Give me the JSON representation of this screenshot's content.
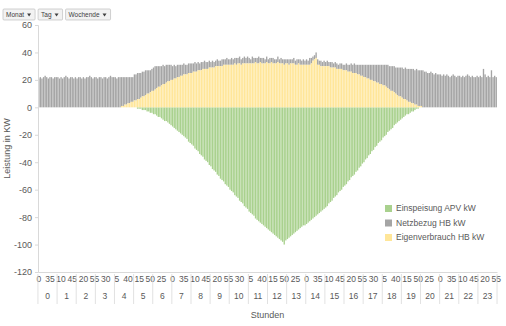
{
  "chart_data": {
    "type": "bar",
    "stacked": true,
    "grid": false,
    "legend": "lower right",
    "filters": [
      "Monat",
      "Tag",
      "Wochende"
    ],
    "y_label": "Leistung in KW",
    "x_label": "Stunden",
    "ylim": [
      -120,
      60
    ],
    "yticks": [
      -120,
      -100,
      -80,
      -60,
      -40,
      -20,
      0,
      20,
      40,
      60
    ],
    "hours": [
      "0",
      "1",
      "2",
      "3",
      "4",
      "5",
      "6",
      "7",
      "8",
      "9",
      "10",
      "11",
      "12",
      "13",
      "14",
      "15",
      "16",
      "17",
      "18",
      "19",
      "20",
      "21",
      "22",
      "23"
    ],
    "categories": [
      "0",
      null,
      null,
      null,
      null,
      null,
      null,
      "35",
      null,
      null,
      null,
      null,
      null,
      null,
      "10",
      null,
      null,
      null,
      null,
      null,
      null,
      "45",
      null,
      null,
      null,
      null,
      null,
      null,
      "20",
      null,
      null,
      null,
      null,
      null,
      null,
      "55",
      null,
      null,
      null,
      null,
      null,
      null,
      "30",
      null,
      null,
      null,
      null,
      null,
      null,
      "5",
      null,
      null,
      null,
      null,
      null,
      null,
      "40",
      null,
      null,
      null,
      null,
      null,
      null,
      "15",
      null,
      null,
      null,
      null,
      null,
      null,
      "50",
      null,
      null,
      null,
      null,
      null,
      null,
      "25",
      null,
      null,
      null,
      null,
      null,
      null,
      "0",
      null,
      null,
      null,
      null,
      null,
      null,
      "35",
      null,
      null,
      null,
      null,
      null,
      null,
      "10",
      null,
      null,
      null,
      null,
      null,
      null,
      "45",
      null,
      null,
      null,
      null,
      null,
      null,
      "20",
      null,
      null,
      null,
      null,
      null,
      null,
      "55",
      null,
      null,
      null,
      null,
      null,
      null,
      "30",
      null,
      null,
      null,
      null,
      null,
      null,
      "5",
      null,
      null,
      null,
      null,
      null,
      null,
      "40",
      null,
      null,
      null,
      null,
      null,
      null,
      "15",
      null,
      null,
      null,
      null,
      null,
      null,
      "50",
      null,
      null,
      null,
      null,
      null,
      null,
      "25",
      null,
      null,
      null,
      null,
      null,
      null,
      "0",
      null,
      null,
      null,
      null,
      null,
      null,
      "35",
      null,
      null,
      null,
      null,
      null,
      null,
      "10",
      null,
      null,
      null,
      null,
      null,
      null,
      "45",
      null,
      null,
      null,
      null,
      null,
      null,
      "20",
      null,
      null,
      null,
      null,
      null,
      null,
      "55",
      null,
      null,
      null,
      null,
      null,
      null,
      "30",
      null,
      null,
      null,
      null,
      null,
      null,
      "5",
      null,
      null,
      null,
      null,
      null,
      null,
      "40",
      null,
      null,
      null,
      null,
      null,
      null,
      "15",
      null,
      null,
      null,
      null,
      null,
      null,
      "50",
      null,
      null,
      null,
      null,
      null,
      null,
      "25",
      null,
      null,
      null,
      null,
      null,
      null,
      "0",
      null,
      null,
      null,
      null,
      null,
      null,
      "35",
      null,
      null,
      null,
      null,
      null,
      null,
      "10",
      null,
      null,
      null,
      null,
      null,
      null,
      "45",
      null,
      null,
      null,
      null,
      null,
      null,
      "20",
      null,
      null,
      null,
      null,
      null,
      null,
      "55"
    ],
    "series": [
      {
        "name": "Einspeisung APV kW",
        "color": "#a9d18e",
        "values": [
          0,
          0,
          0,
          0,
          0,
          0,
          0,
          0,
          0,
          0,
          0,
          0,
          0,
          0,
          0,
          0,
          0,
          0,
          0,
          0,
          0,
          0,
          0,
          0,
          0,
          0,
          0,
          0,
          0,
          0,
          0,
          0,
          0,
          0,
          0,
          0,
          0,
          0,
          0,
          0,
          0,
          0,
          0,
          0,
          0,
          0,
          0,
          0,
          0,
          0,
          0,
          0,
          0,
          0,
          0,
          0,
          0,
          0,
          0,
          0,
          0,
          0,
          -1,
          -1,
          -1,
          -2,
          -2,
          -2,
          -3,
          -3,
          -4,
          -4,
          -5,
          -5,
          -6,
          -7,
          -7,
          -8,
          -9,
          -10,
          -10,
          -11,
          -12,
          -13,
          -14,
          -15,
          -16,
          -17,
          -18,
          -19,
          -20,
          -21,
          -22,
          -23,
          -25,
          -26,
          -27,
          -28,
          -30,
          -31,
          -32,
          -34,
          -35,
          -36,
          -38,
          -39,
          -40,
          -42,
          -43,
          -45,
          -46,
          -47,
          -49,
          -50,
          -52,
          -53,
          -54,
          -56,
          -57,
          -58,
          -60,
          -61,
          -62,
          -64,
          -65,
          -66,
          -68,
          -69,
          -70,
          -72,
          -73,
          -74,
          -76,
          -77,
          -78,
          -79,
          -81,
          -82,
          -83,
          -84,
          -85,
          -86,
          -87,
          -88,
          -89,
          -90,
          -91,
          -92,
          -93,
          -94,
          -95,
          -96,
          -97,
          -98,
          -100,
          -97,
          -96,
          -95,
          -94,
          -93,
          -92,
          -91,
          -90,
          -89,
          -88,
          -87,
          -86,
          -86,
          -85,
          -84,
          -83,
          -82,
          -81,
          -80,
          -79,
          -78,
          -77,
          -76,
          -75,
          -74,
          -73,
          -72,
          -70,
          -69,
          -68,
          -66,
          -65,
          -64,
          -62,
          -61,
          -60,
          -58,
          -57,
          -56,
          -54,
          -53,
          -51,
          -50,
          -49,
          -47,
          -46,
          -44,
          -43,
          -41,
          -40,
          -38,
          -37,
          -35,
          -34,
          -32,
          -31,
          -29,
          -28,
          -26,
          -25,
          -24,
          -22,
          -21,
          -20,
          -18,
          -17,
          -16,
          -15,
          -13,
          -12,
          -11,
          -10,
          -9,
          -8,
          -7,
          -6,
          -5,
          -5,
          -4,
          -3,
          -3,
          -2,
          -1,
          -1,
          0,
          0,
          0,
          0,
          0,
          0,
          0,
          0,
          0,
          0,
          0,
          0,
          0,
          0,
          0,
          0,
          0,
          0,
          0,
          0,
          0,
          0,
          0,
          0,
          0,
          0,
          0,
          0,
          0,
          0,
          0,
          0,
          0,
          0,
          0,
          0,
          0,
          0,
          0,
          0,
          0,
          0,
          0,
          0,
          0,
          0,
          0,
          0,
          0
        ]
      },
      {
        "name": "Netzbezug HB kW",
        "color": "#a5a5a5",
        "values": [
          21,
          22,
          21,
          22,
          23,
          22,
          21,
          22,
          22,
          21,
          22,
          22,
          22,
          21,
          22,
          21,
          22,
          23,
          22,
          21,
          22,
          22,
          21,
          22,
          21,
          22,
          22,
          21,
          22,
          21,
          22,
          22,
          23,
          22,
          21,
          22,
          22,
          21,
          22,
          22,
          21,
          22,
          22,
          21,
          22,
          23,
          22,
          22,
          22,
          21,
          22,
          22,
          21,
          21,
          20,
          20,
          19,
          19,
          18,
          18,
          19,
          19,
          19,
          19,
          18,
          18,
          18,
          18,
          17,
          17,
          16,
          16,
          17,
          17,
          16,
          15,
          15,
          14,
          14,
          13,
          13,
          12,
          12,
          11,
          10,
          10,
          9,
          9,
          9,
          8,
          8,
          8,
          7,
          7,
          7,
          7,
          7,
          6,
          7,
          6,
          6,
          5,
          6,
          5,
          6,
          5,
          5,
          5,
          4,
          5,
          4,
          4,
          5,
          4,
          4,
          5,
          4,
          4,
          5,
          4,
          4,
          5,
          4,
          4,
          5,
          4,
          5,
          4,
          4,
          5,
          4,
          5,
          4,
          3,
          5,
          4,
          3,
          4,
          5,
          3,
          4,
          4,
          3,
          4,
          3,
          4,
          3,
          4,
          3,
          3,
          4,
          3,
          4,
          3,
          4,
          3,
          3,
          4,
          3,
          3,
          4,
          3,
          4,
          3,
          4,
          3,
          4,
          3,
          4,
          3,
          5,
          4,
          3,
          3,
          4,
          4,
          3,
          4,
          3,
          4,
          3,
          4,
          3,
          4,
          4,
          3,
          4,
          4,
          3,
          4,
          4,
          4,
          4,
          5,
          5,
          5,
          6,
          6,
          7,
          6,
          7,
          7,
          8,
          8,
          9,
          9,
          10,
          10,
          11,
          11,
          12,
          12,
          13,
          13,
          14,
          14,
          15,
          15,
          16,
          17,
          17,
          18,
          18,
          19,
          19,
          20,
          21,
          21,
          22,
          22,
          23,
          23,
          24,
          24,
          25,
          25,
          25,
          26,
          26,
          26,
          26,
          27,
          26,
          26,
          25,
          25,
          26,
          25,
          24,
          25,
          24,
          24,
          24,
          23,
          24,
          23,
          24,
          23,
          22,
          23,
          24,
          23,
          22,
          23,
          23,
          22,
          23,
          22,
          23,
          24,
          23,
          22,
          23,
          22,
          22,
          23,
          22,
          23,
          22,
          28,
          24,
          22,
          23,
          22,
          27,
          22,
          23,
          22
        ]
      },
      {
        "name": "Eigenverbrauch HB kW",
        "color": "#ffe699",
        "values": [
          0,
          0,
          0,
          0,
          0,
          0,
          0,
          0,
          0,
          0,
          0,
          0,
          0,
          0,
          0,
          0,
          0,
          0,
          0,
          0,
          0,
          0,
          0,
          0,
          0,
          0,
          0,
          0,
          0,
          0,
          0,
          0,
          0,
          0,
          0,
          0,
          0,
          0,
          0,
          0,
          0,
          0,
          0,
          0,
          0,
          0,
          0,
          0,
          0,
          0,
          0,
          0,
          1,
          1,
          2,
          2,
          3,
          3,
          4,
          4,
          5,
          5,
          6,
          6,
          7,
          8,
          8,
          9,
          10,
          10,
          11,
          12,
          12,
          13,
          14,
          15,
          15,
          16,
          17,
          17,
          18,
          19,
          19,
          20,
          20,
          21,
          21,
          22,
          22,
          23,
          23,
          24,
          24,
          24,
          25,
          25,
          25,
          26,
          26,
          26,
          27,
          27,
          27,
          28,
          28,
          28,
          28,
          29,
          29,
          29,
          29,
          30,
          30,
          30,
          30,
          30,
          31,
          31,
          31,
          31,
          31,
          31,
          31,
          32,
          31,
          32,
          32,
          31,
          32,
          32,
          32,
          32,
          32,
          32,
          32,
          32,
          33,
          32,
          32,
          33,
          32,
          32,
          32,
          33,
          32,
          32,
          33,
          32,
          32,
          32,
          33,
          32,
          32,
          32,
          31,
          32,
          32,
          31,
          32,
          32,
          32,
          31,
          31,
          32,
          31,
          31,
          31,
          31,
          31,
          31,
          31,
          32,
          34,
          35,
          36,
          31,
          31,
          30,
          30,
          30,
          30,
          30,
          30,
          29,
          29,
          29,
          29,
          28,
          28,
          28,
          28,
          27,
          27,
          27,
          26,
          26,
          26,
          25,
          25,
          25,
          24,
          24,
          23,
          23,
          22,
          22,
          21,
          21,
          20,
          20,
          19,
          19,
          18,
          18,
          17,
          17,
          16,
          16,
          15,
          14,
          13,
          12,
          12,
          11,
          10,
          9,
          8,
          8,
          7,
          6,
          6,
          5,
          4,
          4,
          3,
          3,
          2,
          2,
          1,
          1,
          1,
          0,
          0,
          0,
          0,
          0,
          0,
          0,
          0,
          0,
          0,
          0,
          0,
          0,
          0,
          0,
          0,
          0,
          0,
          0,
          0,
          0,
          0,
          0,
          0,
          0,
          0,
          0,
          0,
          0,
          0,
          0,
          0,
          0,
          0,
          0,
          0,
          0,
          0,
          0,
          0,
          0,
          0,
          0,
          0,
          0,
          0,
          0
        ]
      }
    ]
  }
}
